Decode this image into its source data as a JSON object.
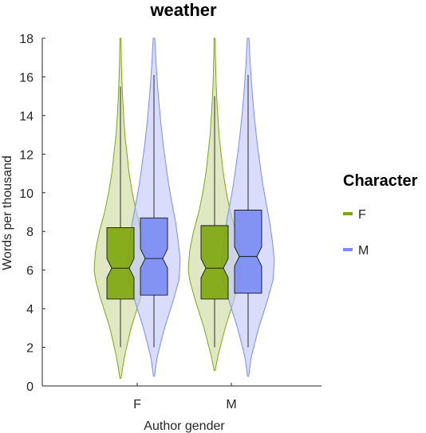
{
  "chart_data": {
    "type": "violin",
    "title": "weather",
    "xlabel": "Author gender",
    "ylabel": "Words per thousand",
    "categories": [
      "F",
      "M"
    ],
    "ylim": [
      0,
      18
    ],
    "yticks": [
      0,
      2,
      4,
      6,
      8,
      10,
      12,
      14,
      16,
      18
    ],
    "grid": false,
    "legend": {
      "title": "Character",
      "placement": "right",
      "entries": [
        "F",
        "M"
      ]
    },
    "series": [
      {
        "name": "F",
        "color": "#7fa60f",
        "fill": "#c9d99a",
        "groups": [
          {
            "category": "F",
            "min": 2.0,
            "q1": 4.5,
            "median": 6.1,
            "q3": 8.2,
            "max": 15.5,
            "notch": [
              5.6,
              6.6
            ],
            "violin_range": [
              0.4,
              18.0
            ],
            "violin_width": [
              [
                0.4,
                0.02
              ],
              [
                1.5,
                0.15
              ],
              [
                3,
                0.4
              ],
              [
                4.5,
                0.75
              ],
              [
                5.5,
                0.95
              ],
              [
                6,
                1.0
              ],
              [
                7,
                0.95
              ],
              [
                8,
                0.8
              ],
              [
                9,
                0.6
              ],
              [
                10,
                0.45
              ],
              [
                11,
                0.33
              ],
              [
                12,
                0.25
              ],
              [
                13,
                0.17
              ],
              [
                14,
                0.12
              ],
              [
                15,
                0.08
              ],
              [
                16,
                0.05
              ],
              [
                17,
                0.03
              ],
              [
                18,
                0.02
              ]
            ]
          },
          {
            "category": "M",
            "min": 2.0,
            "q1": 4.5,
            "median": 6.1,
            "q3": 8.3,
            "max": 15.0,
            "notch": [
              5.6,
              6.6
            ],
            "violin_range": [
              0.8,
              18.0
            ],
            "violin_width": [
              [
                0.8,
                0.02
              ],
              [
                1.5,
                0.12
              ],
              [
                3,
                0.4
              ],
              [
                4.5,
                0.75
              ],
              [
                5.5,
                0.95
              ],
              [
                6,
                1.0
              ],
              [
                7,
                0.95
              ],
              [
                8,
                0.8
              ],
              [
                9,
                0.6
              ],
              [
                10,
                0.45
              ],
              [
                11,
                0.33
              ],
              [
                12,
                0.25
              ],
              [
                13,
                0.17
              ],
              [
                14,
                0.12
              ],
              [
                15,
                0.08
              ],
              [
                16,
                0.05
              ],
              [
                17,
                0.03
              ],
              [
                18,
                0.02
              ]
            ]
          }
        ]
      },
      {
        "name": "M",
        "color": "#7b8cf2",
        "fill": "#c0c7f8",
        "groups": [
          {
            "category": "F",
            "min": 2.0,
            "q1": 4.7,
            "median": 6.6,
            "q3": 8.7,
            "max": 16.1,
            "notch": [
              6.1,
              7.1
            ],
            "violin_range": [
              0.5,
              18.0
            ],
            "violin_width": [
              [
                0.5,
                0.02
              ],
              [
                1.5,
                0.12
              ],
              [
                3,
                0.4
              ],
              [
                4.5,
                0.75
              ],
              [
                5.5,
                0.95
              ],
              [
                6.5,
                1.0
              ],
              [
                7.5,
                0.92
              ],
              [
                8.5,
                0.82
              ],
              [
                9.5,
                0.68
              ],
              [
                10.5,
                0.55
              ],
              [
                11.5,
                0.45
              ],
              [
                12.5,
                0.35
              ],
              [
                13.5,
                0.27
              ],
              [
                14.5,
                0.2
              ],
              [
                15.5,
                0.14
              ],
              [
                16.5,
                0.09
              ],
              [
                17.5,
                0.05
              ],
              [
                18,
                0.03
              ]
            ]
          },
          {
            "category": "M",
            "min": 2.0,
            "q1": 4.8,
            "median": 6.7,
            "q3": 9.1,
            "max": 16.1,
            "notch": [
              6.2,
              7.2
            ],
            "violin_range": [
              0.5,
              18.0
            ],
            "violin_width": [
              [
                0.5,
                0.02
              ],
              [
                1.5,
                0.12
              ],
              [
                3,
                0.4
              ],
              [
                4.5,
                0.75
              ],
              [
                5.5,
                0.95
              ],
              [
                6.5,
                1.0
              ],
              [
                7.5,
                0.92
              ],
              [
                8.5,
                0.82
              ],
              [
                9.5,
                0.68
              ],
              [
                10.5,
                0.55
              ],
              [
                11.5,
                0.45
              ],
              [
                12.5,
                0.35
              ],
              [
                13.5,
                0.27
              ],
              [
                14.5,
                0.2
              ],
              [
                15.5,
                0.14
              ],
              [
                16.5,
                0.09
              ],
              [
                17.5,
                0.05
              ],
              [
                18,
                0.03
              ]
            ]
          }
        ]
      }
    ]
  }
}
